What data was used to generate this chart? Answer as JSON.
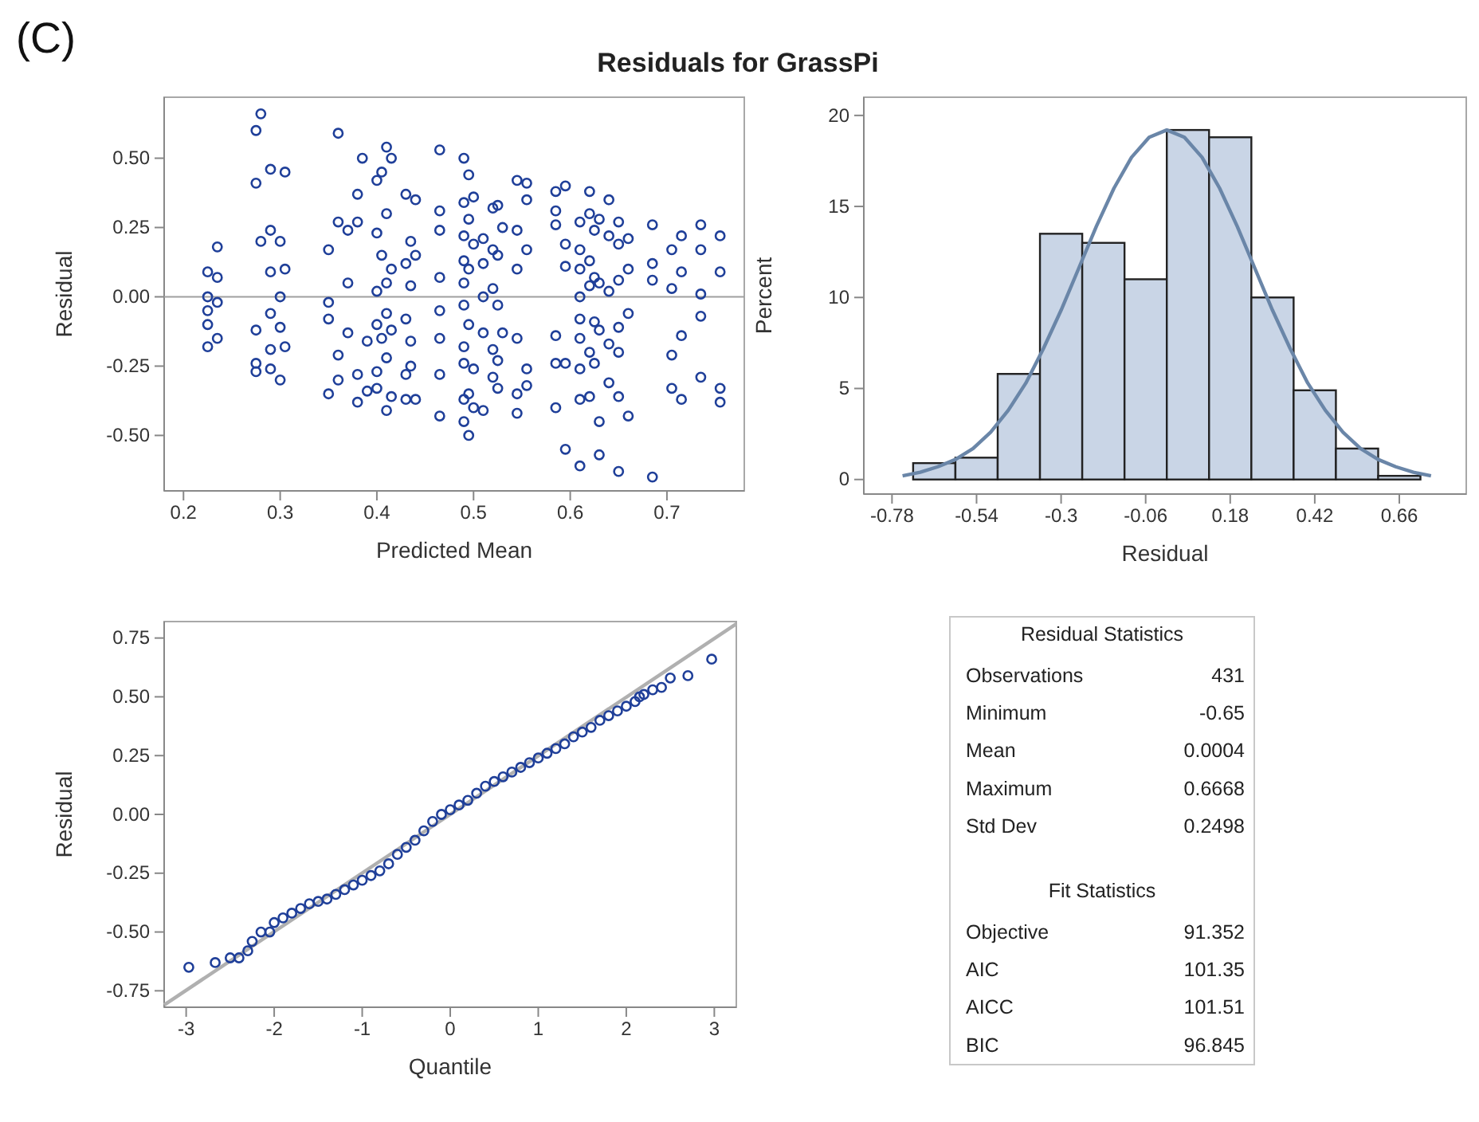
{
  "chart_data": [
    {
      "type": "scatter",
      "title": "Residuals for GrassPi",
      "annotations": [
        "(C)"
      ],
      "xlabel": "Predicted Mean",
      "ylabel": "Residual",
      "xlim": [
        0.18,
        0.78
      ],
      "ylim": [
        -0.7,
        0.72
      ],
      "xticks": [
        0.2,
        0.3,
        0.4,
        0.5,
        0.6,
        0.7
      ],
      "yticks": [
        {
          "value": -0.5,
          "label": "-0.50"
        },
        -0.25,
        {
          "value": 0,
          "label": "0.00"
        },
        0.25,
        {
          "value": 0.5,
          "label": "0.50"
        }
      ],
      "marker": "circle",
      "color": "#1f3f99",
      "ref_lines": [
        {
          "axis": "y",
          "value": 0,
          "color": "#a0a0a0"
        }
      ],
      "x": [
        0.225,
        0.225,
        0.225,
        0.225,
        0.225,
        0.235,
        0.235,
        0.235,
        0.235,
        0.275,
        0.275,
        0.275,
        0.275,
        0.275,
        0.28,
        0.28,
        0.29,
        0.29,
        0.29,
        0.29,
        0.29,
        0.29,
        0.3,
        0.3,
        0.3,
        0.3,
        0.305,
        0.305,
        0.305,
        0.35,
        0.35,
        0.35,
        0.35,
        0.36,
        0.36,
        0.36,
        0.36,
        0.37,
        0.37,
        0.37,
        0.38,
        0.38,
        0.38,
        0.38,
        0.385,
        0.39,
        0.39,
        0.4,
        0.4,
        0.4,
        0.4,
        0.4,
        0.4,
        0.405,
        0.405,
        0.405,
        0.41,
        0.41,
        0.41,
        0.41,
        0.41,
        0.41,
        0.415,
        0.415,
        0.415,
        0.415,
        0.43,
        0.43,
        0.43,
        0.43,
        0.43,
        0.435,
        0.435,
        0.435,
        0.435,
        0.44,
        0.44,
        0.44,
        0.465,
        0.465,
        0.465,
        0.465,
        0.465,
        0.465,
        0.465,
        0.465,
        0.49,
        0.49,
        0.49,
        0.49,
        0.49,
        0.49,
        0.49,
        0.49,
        0.49,
        0.49,
        0.495,
        0.495,
        0.495,
        0.495,
        0.495,
        0.495,
        0.5,
        0.5,
        0.5,
        0.5,
        0.51,
        0.51,
        0.51,
        0.51,
        0.51,
        0.52,
        0.52,
        0.52,
        0.52,
        0.52,
        0.525,
        0.525,
        0.525,
        0.525,
        0.525,
        0.53,
        0.53,
        0.545,
        0.545,
        0.545,
        0.545,
        0.545,
        0.545,
        0.555,
        0.555,
        0.555,
        0.555,
        0.555,
        0.585,
        0.585,
        0.585,
        0.585,
        0.585,
        0.585,
        0.595,
        0.595,
        0.595,
        0.595,
        0.595,
        0.61,
        0.61,
        0.61,
        0.61,
        0.61,
        0.61,
        0.61,
        0.61,
        0.61,
        0.62,
        0.62,
        0.62,
        0.62,
        0.62,
        0.62,
        0.625,
        0.625,
        0.625,
        0.625,
        0.63,
        0.63,
        0.63,
        0.63,
        0.63,
        0.64,
        0.64,
        0.64,
        0.64,
        0.64,
        0.65,
        0.65,
        0.65,
        0.65,
        0.65,
        0.65,
        0.65,
        0.66,
        0.66,
        0.66,
        0.66,
        0.685,
        0.685,
        0.685,
        0.685,
        0.705,
        0.705,
        0.705,
        0.705,
        0.715,
        0.715,
        0.715,
        0.715,
        0.735,
        0.735,
        0.735,
        0.735,
        0.735,
        0.755,
        0.755,
        0.755,
        0.755
      ],
      "values": [
        0.09,
        0.0,
        -0.05,
        -0.1,
        -0.18,
        0.18,
        0.07,
        -0.02,
        -0.15,
        0.6,
        0.41,
        -0.12,
        -0.24,
        -0.27,
        0.66,
        0.2,
        0.46,
        0.24,
        0.09,
        -0.06,
        -0.19,
        -0.26,
        0.2,
        0.0,
        -0.11,
        -0.3,
        0.45,
        0.1,
        -0.18,
        0.17,
        -0.02,
        -0.08,
        -0.35,
        0.59,
        0.27,
        -0.21,
        -0.3,
        0.24,
        0.05,
        -0.13,
        0.37,
        -0.38,
        -0.28,
        0.27,
        0.5,
        -0.34,
        -0.16,
        0.42,
        0.23,
        0.02,
        -0.1,
        -0.27,
        -0.33,
        0.45,
        0.15,
        -0.15,
        0.54,
        0.3,
        0.05,
        -0.06,
        -0.22,
        -0.41,
        0.5,
        0.1,
        -0.12,
        -0.36,
        0.37,
        0.12,
        -0.08,
        -0.28,
        -0.37,
        0.2,
        0.04,
        -0.16,
        -0.25,
        0.35,
        0.15,
        -0.37,
        0.53,
        0.31,
        0.24,
        0.07,
        -0.05,
        -0.15,
        -0.28,
        -0.43,
        0.5,
        0.34,
        0.22,
        0.13,
        0.05,
        -0.03,
        -0.18,
        -0.24,
        -0.37,
        -0.45,
        0.44,
        0.28,
        0.1,
        -0.1,
        -0.35,
        -0.5,
        0.36,
        0.19,
        -0.26,
        -0.4,
        0.21,
        0.12,
        0.0,
        -0.13,
        -0.41,
        0.32,
        0.17,
        0.03,
        -0.19,
        -0.29,
        0.33,
        0.15,
        -0.03,
        -0.23,
        -0.33,
        0.25,
        -0.13,
        0.42,
        0.24,
        0.1,
        -0.15,
        -0.35,
        -0.42,
        0.41,
        0.35,
        0.17,
        -0.26,
        -0.32,
        0.38,
        0.31,
        0.26,
        -0.14,
        -0.24,
        -0.4,
        0.4,
        0.19,
        0.11,
        -0.24,
        -0.55,
        0.27,
        0.17,
        0.1,
        0.0,
        -0.08,
        -0.15,
        -0.26,
        -0.37,
        -0.61,
        0.38,
        0.3,
        0.13,
        0.04,
        -0.2,
        -0.36,
        0.24,
        0.07,
        -0.09,
        -0.24,
        0.28,
        0.05,
        -0.12,
        -0.45,
        -0.57,
        0.35,
        0.22,
        0.02,
        -0.17,
        -0.31,
        0.27,
        0.19,
        0.06,
        -0.11,
        -0.2,
        -0.36,
        -0.63,
        0.21,
        0.1,
        -0.06,
        -0.43,
        0.26,
        0.12,
        0.06,
        -0.65,
        0.17,
        0.03,
        -0.21,
        -0.33,
        0.22,
        0.09,
        -0.14,
        -0.37,
        0.26,
        0.17,
        0.01,
        -0.07,
        -0.29,
        0.22,
        0.09,
        -0.33,
        -0.38
      ]
    },
    {
      "type": "histogram",
      "xlabel": "Residual",
      "ylabel": "Percent",
      "xlim": [
        -0.86,
        0.85
      ],
      "ylim": [
        -0.8,
        21
      ],
      "xticks": [
        -0.78,
        -0.54,
        -0.3,
        -0.06,
        0.18,
        0.42,
        0.66
      ],
      "yticks": [
        0,
        5,
        10,
        15,
        20
      ],
      "series": [
        {
          "type": "histogram",
          "color": "#c9d5e6",
          "bins": [
            -0.72,
            -0.6,
            -0.48,
            -0.36,
            -0.24,
            -0.12,
            0,
            0.12,
            0.24,
            0.36,
            0.48,
            0.6,
            0.72
          ],
          "values": [
            0.9,
            1.2,
            5.8,
            13.5,
            13.0,
            11.0,
            19.2,
            18.8,
            10.0,
            4.9,
            1.7,
            0.2
          ]
        },
        {
          "type": "line",
          "color": "#6a86a8",
          "x": [
            -0.75,
            -0.7,
            -0.65,
            -0.6,
            -0.55,
            -0.5,
            -0.45,
            -0.4,
            -0.35,
            -0.3,
            -0.25,
            -0.2,
            -0.15,
            -0.1,
            -0.05,
            0,
            0.05,
            0.1,
            0.15,
            0.2,
            0.25,
            0.3,
            0.35,
            0.4,
            0.45,
            0.5,
            0.55,
            0.6,
            0.65,
            0.7,
            0.75
          ],
          "values": [
            0.2,
            0.4,
            0.7,
            1.1,
            1.7,
            2.6,
            3.8,
            5.3,
            7.2,
            9.3,
            11.6,
            13.9,
            16.0,
            17.7,
            18.8,
            19.2,
            18.8,
            17.7,
            16.0,
            13.9,
            11.6,
            9.3,
            7.2,
            5.3,
            3.8,
            2.6,
            1.7,
            1.1,
            0.7,
            0.4,
            0.2
          ]
        }
      ]
    },
    {
      "type": "scatter",
      "xlabel": "Quantile",
      "ylabel": "Residual",
      "xlim": [
        -3.25,
        3.25
      ],
      "ylim": [
        -0.82,
        0.82
      ],
      "xticks": [
        -3,
        -2,
        -1,
        0,
        1,
        2,
        3
      ],
      "yticks": [
        -0.75,
        {
          "value": -0.5,
          "label": "-0.50"
        },
        -0.25,
        {
          "value": 0,
          "label": "0.00"
        },
        0.25,
        {
          "value": 0.5,
          "label": "0.50"
        },
        0.75
      ],
      "series": [
        {
          "type": "line",
          "color": "#b0b0b0",
          "x": [
            -3.25,
            3.25
          ],
          "values": [
            -0.81,
            0.81
          ]
        },
        {
          "type": "scatter",
          "marker": "circle",
          "color": "#1f3f99",
          "x": [
            -2.97,
            -2.67,
            -2.5,
            -2.4,
            -2.3,
            -2.25,
            -2.15,
            -2.05,
            -2.0,
            -1.9,
            -1.8,
            -1.7,
            -1.6,
            -1.5,
            -1.4,
            -1.3,
            -1.2,
            -1.1,
            -1.0,
            -0.9,
            -0.8,
            -0.7,
            -0.6,
            -0.5,
            -0.4,
            -0.3,
            -0.2,
            -0.1,
            0,
            0.1,
            0.2,
            0.3,
            0.4,
            0.5,
            0.6,
            0.7,
            0.8,
            0.9,
            1.0,
            1.1,
            1.2,
            1.3,
            1.4,
            1.5,
            1.6,
            1.7,
            1.8,
            1.9,
            2.0,
            2.1,
            2.15,
            2.2,
            2.3,
            2.4,
            2.5,
            2.7,
            2.97
          ],
          "values": [
            -0.65,
            -0.63,
            -0.61,
            -0.61,
            -0.58,
            -0.54,
            -0.5,
            -0.5,
            -0.46,
            -0.44,
            -0.42,
            -0.4,
            -0.38,
            -0.37,
            -0.36,
            -0.34,
            -0.32,
            -0.3,
            -0.28,
            -0.26,
            -0.24,
            -0.21,
            -0.17,
            -0.14,
            -0.11,
            -0.07,
            -0.03,
            0.0,
            0.02,
            0.04,
            0.06,
            0.09,
            0.12,
            0.14,
            0.16,
            0.18,
            0.2,
            0.22,
            0.24,
            0.26,
            0.28,
            0.3,
            0.33,
            0.35,
            0.37,
            0.4,
            0.42,
            0.44,
            0.46,
            0.48,
            0.5,
            0.51,
            0.53,
            0.54,
            0.58,
            0.59,
            0.66
          ]
        }
      ]
    },
    {
      "type": "other",
      "title": "Residual Statistics",
      "categories": [
        "Observations",
        "Minimum",
        "Mean",
        "Maximum",
        "Std Dev"
      ],
      "value_labels": [
        "431",
        "-0.65",
        "0.0004",
        "0.6668",
        "0.2498"
      ]
    },
    {
      "type": "other",
      "title": "Fit Statistics",
      "categories": [
        "Objective",
        "AIC",
        "AICC",
        "BIC"
      ],
      "value_labels": [
        "91.352",
        "101.35",
        "101.51",
        "96.845"
      ]
    }
  ]
}
